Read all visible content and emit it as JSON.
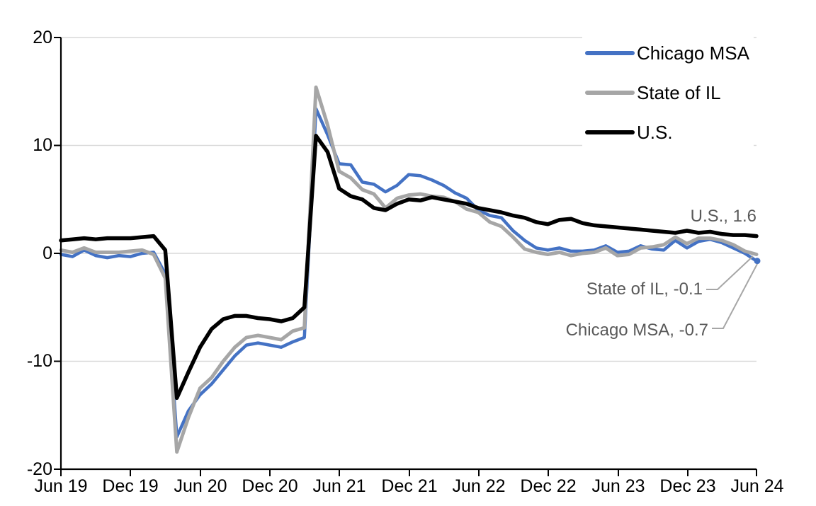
{
  "chart_data": {
    "type": "line",
    "title": "",
    "x_unit": "month",
    "x_range": [
      "Jun 2019",
      "Jun 2024"
    ],
    "x_tick_labels": [
      "Jun 19",
      "Dec 19",
      "Jun 20",
      "Dec 20",
      "Jun 21",
      "Dec 21",
      "Jun 22",
      "Dec 22",
      "Jun 23",
      "Dec 23",
      "Jun 24"
    ],
    "y_tick_labels": [
      "20",
      "10",
      "0",
      "-10",
      "-20"
    ],
    "y_ticks": [
      20,
      10,
      0,
      -10,
      -20
    ],
    "ylim": [
      -20,
      20
    ],
    "grid": true,
    "legend_position": "top-right",
    "series": [
      {
        "name": "Chicago MSA",
        "color": "#4472C4",
        "last_value": -0.7,
        "end_marker": true,
        "values": [
          -0.1,
          -0.3,
          0.3,
          -0.2,
          -0.4,
          -0.2,
          -0.3,
          0.0,
          0.1,
          -1.9,
          -17.0,
          -14.6,
          -13.1,
          -12.1,
          -10.8,
          -9.5,
          -8.5,
          -8.3,
          -8.5,
          -8.7,
          -8.2,
          -7.8,
          13.4,
          11.0,
          8.3,
          8.2,
          6.6,
          6.4,
          5.7,
          6.3,
          7.3,
          7.2,
          6.8,
          6.3,
          5.6,
          5.1,
          4.0,
          3.5,
          3.3,
          2.1,
          1.2,
          0.5,
          0.3,
          0.5,
          0.2,
          0.2,
          0.3,
          0.7,
          0.1,
          0.2,
          0.7,
          0.4,
          0.3,
          1.2,
          0.5,
          1.1,
          1.3,
          1.0,
          0.5,
          0.0,
          -0.7
        ]
      },
      {
        "name": "State of IL",
        "color": "#A6A6A6",
        "last_value": -0.1,
        "end_marker": false,
        "values": [
          0.3,
          0.1,
          0.5,
          0.1,
          0.1,
          0.1,
          0.2,
          0.3,
          -0.1,
          -2.3,
          -18.4,
          -15.2,
          -12.5,
          -11.5,
          -10.0,
          -8.7,
          -7.8,
          -7.6,
          -7.8,
          -8.0,
          -7.2,
          -6.9,
          15.4,
          11.9,
          7.6,
          7.0,
          5.9,
          5.5,
          4.2,
          5.1,
          5.4,
          5.5,
          5.3,
          5.2,
          4.8,
          4.1,
          3.8,
          2.9,
          2.5,
          1.5,
          0.4,
          0.1,
          -0.1,
          0.1,
          -0.2,
          0.0,
          0.1,
          0.5,
          -0.2,
          -0.1,
          0.5,
          0.6,
          0.8,
          1.5,
          0.9,
          1.4,
          1.4,
          1.2,
          0.8,
          0.2,
          -0.1
        ]
      },
      {
        "name": "U.S.",
        "color": "#000000",
        "last_value": 1.6,
        "end_marker": false,
        "values": [
          1.2,
          1.3,
          1.4,
          1.3,
          1.4,
          1.4,
          1.4,
          1.5,
          1.6,
          0.3,
          -13.4,
          -11.0,
          -8.7,
          -7.0,
          -6.1,
          -5.8,
          -5.8,
          -6.0,
          -6.1,
          -6.3,
          -6.0,
          -5.0,
          10.9,
          9.4,
          6.0,
          5.3,
          5.0,
          4.2,
          4.0,
          4.6,
          5.0,
          4.9,
          5.2,
          5.0,
          4.8,
          4.6,
          4.2,
          4.0,
          3.8,
          3.5,
          3.3,
          2.9,
          2.7,
          3.1,
          3.2,
          2.8,
          2.6,
          2.5,
          2.4,
          2.3,
          2.2,
          2.1,
          2.0,
          1.9,
          2.1,
          1.9,
          2.0,
          1.8,
          1.7,
          1.7,
          1.6
        ]
      }
    ],
    "annotations": [
      {
        "text": "U.S., 1.6",
        "series": "U.S."
      },
      {
        "text": "State of IL, -0.1",
        "series": "State of IL"
      },
      {
        "text": "Chicago MSA, -0.7",
        "series": "Chicago MSA"
      }
    ]
  },
  "colors": {
    "background": "#FFFFFF",
    "grid": "#D9D9D9",
    "axis": "#000000",
    "annotation_text": "#595959",
    "leader_line": "#A6A6A6"
  }
}
